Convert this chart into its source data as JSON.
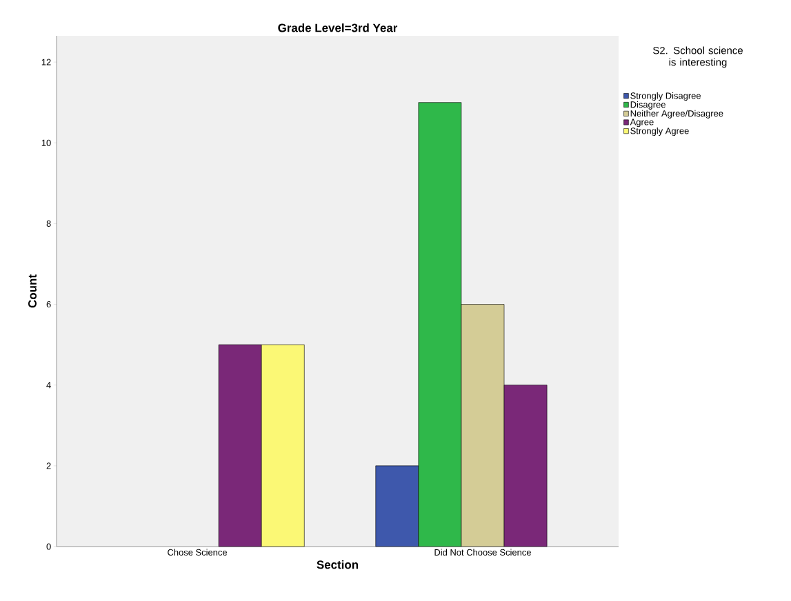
{
  "chart_data": {
    "type": "bar",
    "title": "Grade Level=3rd Year",
    "xlabel": "Section",
    "ylabel": "Count",
    "legend_title": "S2. School science is interesting",
    "categories": [
      "Chose Science",
      "Did Not Choose Science"
    ],
    "series": [
      {
        "name": "Strongly Disagree",
        "color": "#3e58ac",
        "values": [
          null,
          2
        ]
      },
      {
        "name": "Disagree",
        "color": "#2fb84a",
        "values": [
          null,
          11
        ]
      },
      {
        "name": "Neither Agree/Disagree",
        "color": "#d4cc96",
        "values": [
          null,
          6
        ]
      },
      {
        "name": "Agree",
        "color": "#7a2878",
        "values": [
          5,
          4
        ]
      },
      {
        "name": "Strongly Agree",
        "color": "#fbf875",
        "values": [
          5,
          null
        ]
      }
    ],
    "ylim": [
      0,
      12.65
    ],
    "yticks": [
      0,
      2,
      4,
      6,
      8,
      10,
      12
    ],
    "grid": false,
    "legend": "right"
  }
}
